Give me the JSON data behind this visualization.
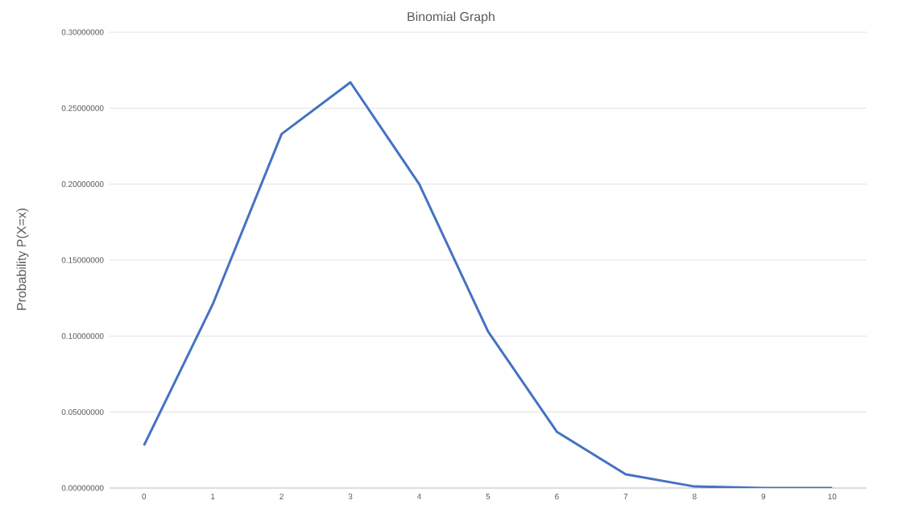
{
  "chart_data": {
    "type": "line",
    "title": "Binomial Graph",
    "ylabel": "Probability P(X=x)",
    "categories": [
      "0",
      "1",
      "2",
      "3",
      "4",
      "5",
      "6",
      "7",
      "8",
      "9",
      "10"
    ],
    "series": [
      {
        "color": "#4472c4",
        "values": [
          0.028,
          0.121,
          0.233,
          0.267,
          0.2,
          0.103,
          0.037,
          0.009,
          0.001,
          0.0,
          0.0
        ]
      }
    ],
    "ylim": [
      0,
      0.3
    ],
    "yticks": [
      {
        "value": 0,
        "label": "0.00000000"
      },
      {
        "value": 0.05,
        "label": "0.05000000"
      },
      {
        "value": 0.1,
        "label": "0.10000000"
      },
      {
        "value": 0.15,
        "label": "0.15000000"
      },
      {
        "value": 0.2,
        "label": "0.20000000"
      },
      {
        "value": 0.25,
        "label": "0.25000000"
      },
      {
        "value": 0.3,
        "label": "0.30000000"
      }
    ],
    "grid": "y",
    "marker": "none",
    "line_style": "solid"
  }
}
